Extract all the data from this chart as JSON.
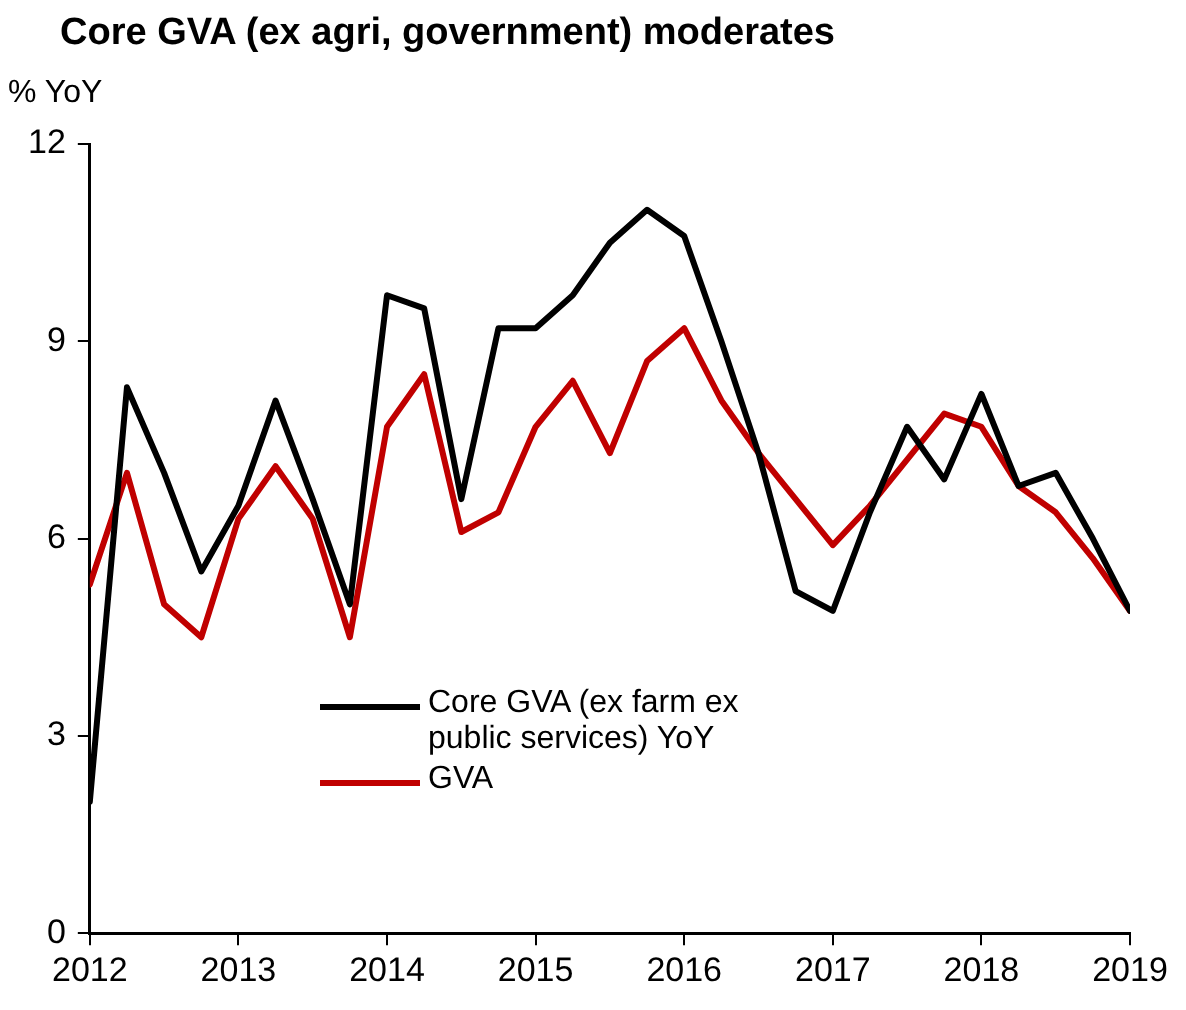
{
  "chart_data": {
    "type": "line",
    "title": "Core GVA (ex agri, government) moderates",
    "ylabel": "% YoY",
    "x": [
      2012,
      2012.25,
      2012.5,
      2012.75,
      2013,
      2013.25,
      2013.5,
      2013.75,
      2014,
      2014.25,
      2014.5,
      2014.75,
      2015,
      2015.25,
      2015.5,
      2015.75,
      2016,
      2016.25,
      2016.5,
      2016.75,
      2017,
      2017.25,
      2017.5,
      2017.75,
      2018,
      2018.25,
      2018.5,
      2018.75,
      2019
    ],
    "series": [
      {
        "name": "Core GVA (ex farm ex public services) YoY",
        "color": "#000000",
        "values": [
          2.0,
          8.3,
          7.0,
          5.5,
          6.5,
          8.1,
          6.6,
          5.0,
          9.7,
          9.5,
          6.6,
          9.2,
          9.2,
          9.7,
          10.5,
          11.0,
          10.6,
          9.0,
          7.3,
          5.2,
          4.9,
          6.4,
          7.7,
          6.9,
          8.2,
          6.8,
          7.0,
          6.0,
          4.9
        ]
      },
      {
        "name": "GVA",
        "color": "#c00000",
        "values": [
          5.3,
          7.0,
          5.0,
          4.5,
          6.3,
          7.1,
          6.3,
          4.5,
          7.7,
          8.5,
          6.1,
          6.4,
          7.7,
          8.4,
          7.3,
          8.7,
          9.2,
          8.1,
          7.3,
          6.6,
          5.9,
          6.5,
          7.2,
          7.9,
          7.7,
          6.8,
          6.4,
          5.7,
          4.9
        ]
      }
    ],
    "xlim": [
      2012,
      2019
    ],
    "xticks": [
      2012,
      2013,
      2014,
      2015,
      2016,
      2017,
      2018,
      2019
    ],
    "ylim": [
      0,
      12
    ],
    "yticks": [
      0,
      3,
      6,
      9,
      12
    ],
    "grid": false,
    "legend": "bottom",
    "marker": "none",
    "line_style": "solid"
  }
}
